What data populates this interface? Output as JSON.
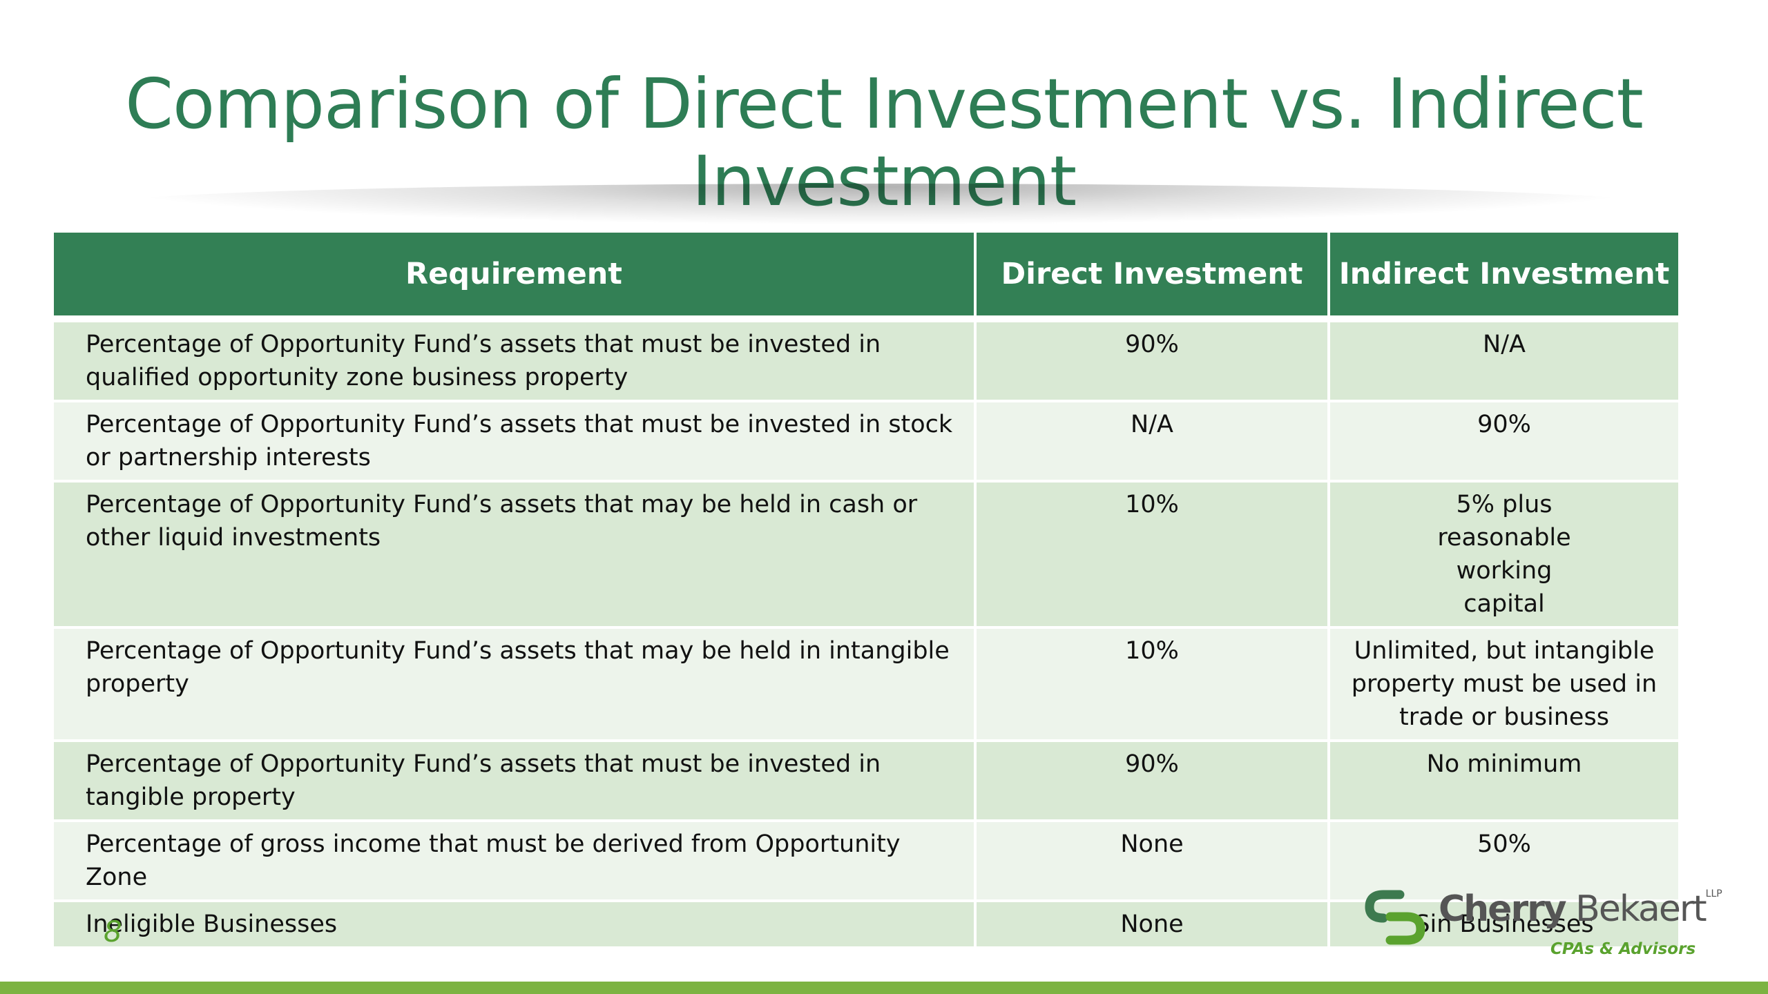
{
  "slide": {
    "title": "Comparison of Direct Investment vs. Indirect Investment",
    "page_number": "8"
  },
  "table": {
    "headers": [
      "Requirement",
      "Direct Investment",
      "Indirect Investment"
    ],
    "rows": [
      {
        "requirement": "Percentage of Opportunity Fund’s assets that must be invested in  qualified opportunity zone business property",
        "direct": "90%",
        "indirect": "N/A"
      },
      {
        "requirement": "Percentage of Opportunity Fund’s assets that must be invested in  stock or partnership interests",
        "direct": "N/A",
        "indirect": "90%"
      },
      {
        "requirement": "Percentage of Opportunity Fund’s assets that may be held in cash  or other liquid investments",
        "direct": "10%",
        "indirect": "5% plus reasonable working capital"
      },
      {
        "requirement": "Percentage of Opportunity Fund’s assets that may be held in intangible property",
        "direct": "10%",
        "indirect": "Unlimited, but intangible property must be used in trade or business"
      },
      {
        "requirement": "Percentage of Opportunity Fund’s assets that must be invested in  tangible property",
        "direct": "90%",
        "indirect": "No minimum"
      },
      {
        "requirement": "Percentage of gross income that must be derived from  Opportunity Zone",
        "direct": "None",
        "indirect": "50%"
      },
      {
        "requirement": "Ineligible Businesses",
        "direct": "None",
        "indirect": "Sin Businesses"
      }
    ]
  },
  "logo": {
    "name_part1": "Cherry",
    "name_part2": "Bekaert",
    "suffix": "LLP",
    "tagline": "CPAs & Advisors",
    "icon": "cherry-bekaert-logo-mark"
  },
  "colors": {
    "title": "#2e7d55",
    "header_bg": "#338055",
    "row_odd": "#d9e9d4",
    "row_even": "#edf4eb",
    "accent": "#7cb342"
  }
}
